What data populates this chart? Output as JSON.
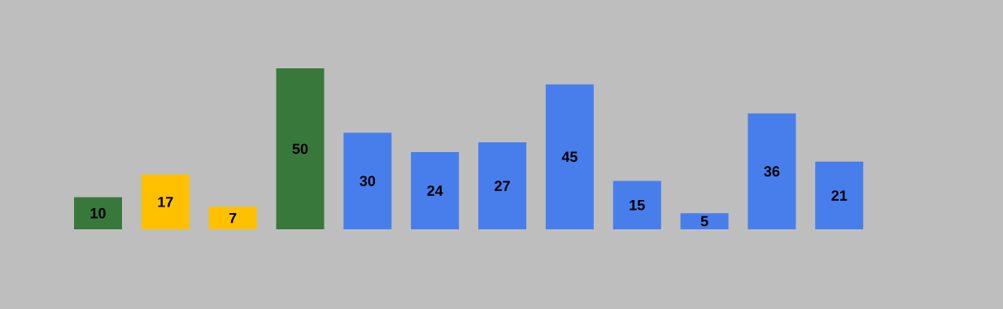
{
  "chart_data": {
    "type": "bar",
    "categories": [
      null,
      null,
      null,
      null,
      null,
      null,
      null,
      null,
      null,
      null,
      null,
      null
    ],
    "values": [
      10,
      17,
      7,
      50,
      30,
      24,
      27,
      45,
      15,
      5,
      36,
      21
    ],
    "colors": [
      "#38793b",
      "#ffc000",
      "#ffc000",
      "#38793b",
      "#477eeb",
      "#477eeb",
      "#477eeb",
      "#477eeb",
      "#477eeb",
      "#477eeb",
      "#477eeb",
      "#477eeb"
    ],
    "data_labels": true
  }
}
